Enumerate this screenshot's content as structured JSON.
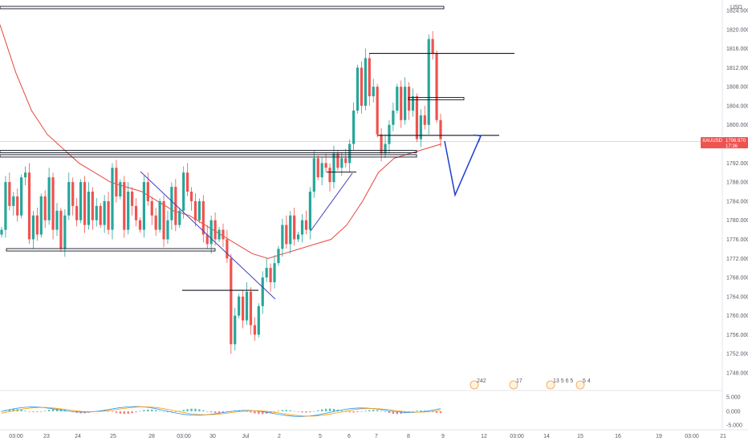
{
  "chart_data": {
    "type": "candlestick",
    "symbol": "XAUUSD",
    "currency_label": "USD",
    "current_price": "1796.970",
    "countdown": "17:36",
    "ylim": [
      1746,
      1826
    ],
    "y_ticks": [
      "1824.000",
      "1820.000",
      "1816.000",
      "1812.000",
      "1808.000",
      "1804.000",
      "1800.000",
      "1796.000",
      "1792.000",
      "1788.000",
      "1784.000",
      "1780.000",
      "1776.000",
      "1772.000",
      "1768.000",
      "1764.000",
      "1760.000",
      "1756.000",
      "1752.000",
      "1748.000"
    ],
    "x_ticks": [
      "03:00",
      "23",
      "24",
      "25",
      "28",
      "03:00",
      "30",
      "Jul",
      "2",
      "5",
      "6",
      "7",
      "8",
      "9",
      "12",
      "03:00",
      "14",
      "15",
      "16",
      "19",
      "03:00",
      "21"
    ],
    "macd_ticks": [
      "5.000",
      "0.000",
      "-5.000"
    ],
    "event_badges": [
      "242",
      "17",
      "13 5 6 5",
      "5 4"
    ],
    "colors": {
      "up": "#26a69a",
      "down": "#ef5350",
      "ma": "#e8463a",
      "trendline": "#3f3fbf",
      "projection": "#1f3fd0",
      "level": "#131722",
      "macd": "#2196f3",
      "signal": "#ff9800"
    },
    "key_levels": [
      1824.6,
      1815.0,
      1805.5,
      1797.8,
      1794.4,
      1793.5,
      1790.1,
      1773.8,
      1765.3
    ],
    "close_path": [
      1778,
      1788,
      1783,
      1785,
      1781,
      1789,
      1790,
      1776,
      1781,
      1777,
      1785,
      1780,
      1789,
      1778,
      1782,
      1774,
      1781,
      1788,
      1783,
      1780,
      1788,
      1779,
      1786,
      1780,
      1783,
      1779,
      1784,
      1778,
      1791,
      1785,
      1788,
      1778,
      1786,
      1783,
      1780,
      1778,
      1788,
      1784,
      1781,
      1778,
      1784,
      1776,
      1780,
      1787,
      1779,
      1782,
      1790,
      1786,
      1784,
      1780,
      1784,
      1777,
      1775,
      1780,
      1776,
      1778,
      1776,
      1772,
      1754,
      1760,
      1764,
      1759,
      1765,
      1758,
      1756,
      1762,
      1768,
      1770,
      1767,
      1771,
      1774,
      1779,
      1775,
      1781,
      1776,
      1777,
      1780,
      1778,
      1786,
      1793,
      1789,
      1792,
      1791,
      1788,
      1794,
      1791,
      1793,
      1792,
      1796,
      1803,
      1812,
      1804,
      1814,
      1806,
      1808,
      1798,
      1794,
      1796,
      1800,
      1803,
      1808,
      1801,
      1808,
      1803,
      1806,
      1797,
      1802,
      1800,
      1818,
      1815,
      1801,
      1797
    ],
    "ma_path": [
      1821,
      1811,
      1803,
      1798,
      1795,
      1792,
      1790,
      1788,
      1787,
      1786,
      1784,
      1782,
      1781,
      1779,
      1777,
      1775,
      1773,
      1772,
      1773,
      1774,
      1775,
      1776,
      1779,
      1784,
      1790,
      1793,
      1794,
      1795,
      1796
    ],
    "projection_path": [
      1796.6,
      1785.3,
      1797.7
    ]
  }
}
